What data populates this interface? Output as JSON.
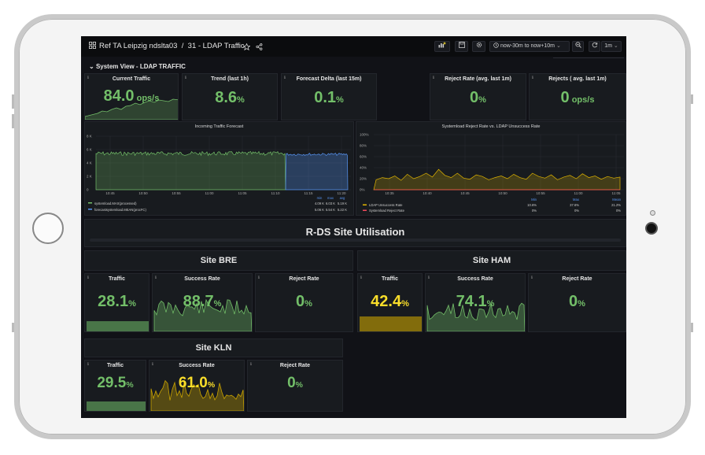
{
  "header": {
    "breadcrumb": "Ref TA Leipzig ndslta03",
    "separator": "/",
    "dashboard": "31 - LDAP Traffic",
    "time_range": "now-30m to now+10m",
    "refresh": "1m"
  },
  "row_title": "System View - LDAP TRAFFIC",
  "stats": [
    {
      "title": "Current Traffic",
      "value": "84.0",
      "unit": " ops/s"
    },
    {
      "title": "Trend (last 1h)",
      "value": "8.6",
      "unit": "%"
    },
    {
      "title": "Forecast Delta (last 15m)",
      "value": "0.1",
      "unit": "%"
    },
    {
      "title": "Reject Rate (avg. last 1m)",
      "value": "0",
      "unit": "%"
    },
    {
      "title": "Rejects ( avg. last 1m)",
      "value": "0",
      "unit": " ops/s"
    }
  ],
  "chart_left": {
    "title": "Incoming Traffic Forecast",
    "y_ticks": [
      "8 K",
      "6 K",
      "4 K",
      "2 K",
      "0"
    ],
    "x_ticks": [
      "10:45",
      "10:50",
      "10:55",
      "11:00",
      "11:05",
      "11:10",
      "11:15",
      "11:20"
    ],
    "legend_headers": [
      "min",
      "max",
      "avg"
    ],
    "legend": [
      {
        "name": "systemload.MAX(processed)",
        "min": "4.09 K",
        "max": "6.03 K",
        "avg": "5.19 K",
        "color": "#73bf69"
      },
      {
        "name": "forecastsystemload.MEAN(procFC)",
        "min": "5.06 K",
        "max": "5.54 K",
        "avg": "5.22 K",
        "color": "#5794f2"
      }
    ]
  },
  "chart_right": {
    "title": "Systemload Reject Rate vs. LDAP Unsuccess Rate",
    "y_ticks": [
      "100%",
      "80%",
      "60%",
      "40%",
      "20%",
      "0%"
    ],
    "x_ticks": [
      "10:35",
      "10:40",
      "10:45",
      "10:50",
      "10:55",
      "11:00",
      "11:05"
    ],
    "legend_headers": [
      "Min",
      "Max",
      "Mean"
    ],
    "legend": [
      {
        "name": "LDAP Unsuccess Rate",
        "min": "10.6%",
        "max": "37.6%",
        "mean": "21.2%",
        "color": "#e0b400"
      },
      {
        "name": "Systemload Reject Rate",
        "min": "0%",
        "max": "0%",
        "mean": "0%",
        "color": "#f2495c"
      }
    ]
  },
  "utilisation_title": "R-DS Site Utilisation",
  "sites": [
    {
      "name": "Site BRE",
      "traffic": "28.1",
      "success": "88.7",
      "reject": "0"
    },
    {
      "name": "Site HAM",
      "traffic": "42.4",
      "success": "74.1",
      "reject": "0"
    },
    {
      "name": "Site KLN",
      "traffic": "29.5",
      "success": "61.0",
      "reject": "0"
    }
  ],
  "labels": {
    "traffic": "Traffic",
    "success": "Success Rate",
    "reject": "Reject Rate",
    "pct": "%"
  },
  "colors": {
    "green": "#73bf69",
    "yellow": "#fade2a",
    "blue": "#5794f2",
    "bg": "#111217",
    "panel": "#181b1f"
  }
}
